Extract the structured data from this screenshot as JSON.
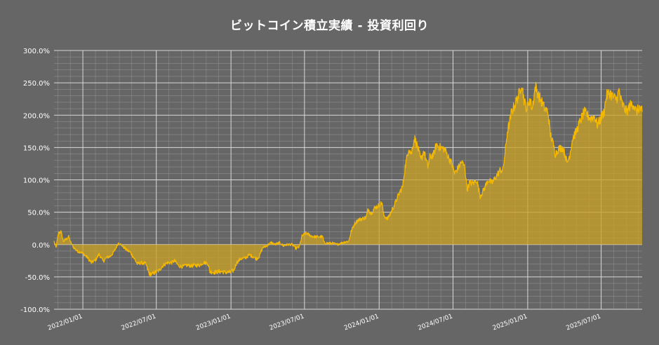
{
  "chart_data": {
    "type": "area",
    "title": "ビットコイン積立実績 ‐ 投資利回り",
    "xlabel": "",
    "ylabel": "",
    "x_range": [
      "2021-10-22",
      "2025-10-10"
    ],
    "ylim": [
      -100,
      300
    ],
    "y_ticks": [
      -100,
      -50,
      0,
      50,
      100,
      150,
      200,
      250,
      300
    ],
    "y_tick_labels": [
      "-100.0%",
      "-50.0%",
      "0.0%",
      "50.0%",
      "100.0%",
      "150.0%",
      "200.0%",
      "250.0%",
      "300.0%"
    ],
    "x_ticks": [
      "2022-01-01",
      "2022-07-01",
      "2023-01-01",
      "2023-07-01",
      "2024-01-01",
      "2024-07-01",
      "2025-01-01",
      "2025-07-01"
    ],
    "x_tick_labels": [
      "2022/01/01",
      "2022/07/01",
      "2023/01/01",
      "2023/07/01",
      "2024/01/01",
      "2024/07/01",
      "2025/01/01",
      "2025/07/01"
    ],
    "grid": true,
    "line_color": "#f5b800",
    "fill_color": "#c9a227",
    "series": [
      {
        "points": [
          [
            "2021-10-22",
            5
          ],
          [
            "2021-10-27",
            -5
          ],
          [
            "2021-11-02",
            18
          ],
          [
            "2021-11-08",
            20
          ],
          [
            "2021-11-14",
            5
          ],
          [
            "2021-11-20",
            8
          ],
          [
            "2021-11-27",
            12
          ],
          [
            "2021-12-03",
            2
          ],
          [
            "2021-12-10",
            -5
          ],
          [
            "2021-12-18",
            -10
          ],
          [
            "2021-12-28",
            -12
          ],
          [
            "2022-01-05",
            -16
          ],
          [
            "2022-01-12",
            -20
          ],
          [
            "2022-01-22",
            -28
          ],
          [
            "2022-02-01",
            -24
          ],
          [
            "2022-02-10",
            -15
          ],
          [
            "2022-02-20",
            -26
          ],
          [
            "2022-03-01",
            -20
          ],
          [
            "2022-03-10",
            -18
          ],
          [
            "2022-03-20",
            -10
          ],
          [
            "2022-03-30",
            3
          ],
          [
            "2022-04-08",
            -2
          ],
          [
            "2022-04-18",
            -8
          ],
          [
            "2022-04-28",
            -12
          ],
          [
            "2022-05-08",
            -22
          ],
          [
            "2022-05-15",
            -30
          ],
          [
            "2022-05-25",
            -28
          ],
          [
            "2022-06-05",
            -30
          ],
          [
            "2022-06-13",
            -45
          ],
          [
            "2022-06-20",
            -46
          ],
          [
            "2022-06-28",
            -43
          ],
          [
            "2022-07-08",
            -40
          ],
          [
            "2022-07-18",
            -32
          ],
          [
            "2022-07-28",
            -28
          ],
          [
            "2022-08-08",
            -28
          ],
          [
            "2022-08-15",
            -25
          ],
          [
            "2022-08-25",
            -33
          ],
          [
            "2022-09-05",
            -34
          ],
          [
            "2022-09-15",
            -32
          ],
          [
            "2022-09-25",
            -33
          ],
          [
            "2022-10-05",
            -32
          ],
          [
            "2022-10-15",
            -32
          ],
          [
            "2022-10-25",
            -28
          ],
          [
            "2022-11-05",
            -29
          ],
          [
            "2022-11-10",
            -42
          ],
          [
            "2022-11-20",
            -43
          ],
          [
            "2022-12-01",
            -42
          ],
          [
            "2022-12-10",
            -42
          ],
          [
            "2022-12-20",
            -43
          ],
          [
            "2022-12-30",
            -43
          ],
          [
            "2023-01-08",
            -40
          ],
          [
            "2023-01-15",
            -28
          ],
          [
            "2023-01-25",
            -22
          ],
          [
            "2023-02-05",
            -21
          ],
          [
            "2023-02-15",
            -16
          ],
          [
            "2023-02-25",
            -19
          ],
          [
            "2023-03-05",
            -22
          ],
          [
            "2023-03-12",
            -18
          ],
          [
            "2023-03-20",
            -5
          ],
          [
            "2023-03-30",
            -2
          ],
          [
            "2023-04-10",
            3
          ],
          [
            "2023-04-20",
            0
          ],
          [
            "2023-05-01",
            3
          ],
          [
            "2023-05-10",
            -2
          ],
          [
            "2023-05-20",
            0
          ],
          [
            "2023-06-01",
            0
          ],
          [
            "2023-06-10",
            -6
          ],
          [
            "2023-06-18",
            -4
          ],
          [
            "2023-06-25",
            13
          ],
          [
            "2023-07-05",
            18
          ],
          [
            "2023-07-15",
            14
          ],
          [
            "2023-07-25",
            12
          ],
          [
            "2023-08-05",
            12
          ],
          [
            "2023-08-15",
            12
          ],
          [
            "2023-08-18",
            3
          ],
          [
            "2023-08-28",
            2
          ],
          [
            "2023-09-08",
            2
          ],
          [
            "2023-09-18",
            0
          ],
          [
            "2023-09-28",
            2
          ],
          [
            "2023-10-08",
            4
          ],
          [
            "2023-10-18",
            5
          ],
          [
            "2023-10-24",
            20
          ],
          [
            "2023-11-01",
            32
          ],
          [
            "2023-11-10",
            38
          ],
          [
            "2023-11-20",
            40
          ],
          [
            "2023-11-30",
            42
          ],
          [
            "2023-12-05",
            55
          ],
          [
            "2023-12-12",
            48
          ],
          [
            "2023-12-20",
            56
          ],
          [
            "2023-12-30",
            60
          ],
          [
            "2024-01-08",
            65
          ],
          [
            "2024-01-12",
            45
          ],
          [
            "2024-01-22",
            40
          ],
          [
            "2024-02-01",
            52
          ],
          [
            "2024-02-10",
            65
          ],
          [
            "2024-02-20",
            80
          ],
          [
            "2024-02-28",
            90
          ],
          [
            "2024-03-05",
            120
          ],
          [
            "2024-03-14",
            150
          ],
          [
            "2024-03-20",
            140
          ],
          [
            "2024-03-28",
            165
          ],
          [
            "2024-04-05",
            150
          ],
          [
            "2024-04-13",
            130
          ],
          [
            "2024-04-20",
            145
          ],
          [
            "2024-04-30",
            120
          ],
          [
            "2024-05-05",
            135
          ],
          [
            "2024-05-15",
            140
          ],
          [
            "2024-05-21",
            155
          ],
          [
            "2024-05-30",
            150
          ],
          [
            "2024-06-10",
            148
          ],
          [
            "2024-06-20",
            135
          ],
          [
            "2024-06-28",
            125
          ],
          [
            "2024-07-05",
            110
          ],
          [
            "2024-07-15",
            120
          ],
          [
            "2024-07-22",
            128
          ],
          [
            "2024-07-30",
            120
          ],
          [
            "2024-08-05",
            85
          ],
          [
            "2024-08-10",
            95
          ],
          [
            "2024-08-20",
            95
          ],
          [
            "2024-08-28",
            100
          ],
          [
            "2024-09-06",
            75
          ],
          [
            "2024-09-15",
            85
          ],
          [
            "2024-09-25",
            100
          ],
          [
            "2024-10-05",
            95
          ],
          [
            "2024-10-15",
            105
          ],
          [
            "2024-10-25",
            115
          ],
          [
            "2024-11-01",
            115
          ],
          [
            "2024-11-06",
            140
          ],
          [
            "2024-11-12",
            175
          ],
          [
            "2024-11-18",
            190
          ],
          [
            "2024-11-22",
            205
          ],
          [
            "2024-11-30",
            215
          ],
          [
            "2024-12-06",
            225
          ],
          [
            "2024-12-12",
            235
          ],
          [
            "2024-12-17",
            250
          ],
          [
            "2024-12-24",
            220
          ],
          [
            "2024-12-30",
            210
          ],
          [
            "2025-01-06",
            225
          ],
          [
            "2025-01-12",
            210
          ],
          [
            "2025-01-20",
            245
          ],
          [
            "2025-01-28",
            230
          ],
          [
            "2025-02-05",
            220
          ],
          [
            "2025-02-12",
            210
          ],
          [
            "2025-02-20",
            205
          ],
          [
            "2025-02-26",
            170
          ],
          [
            "2025-03-05",
            155
          ],
          [
            "2025-03-10",
            140
          ],
          [
            "2025-03-18",
            148
          ],
          [
            "2025-03-28",
            150
          ],
          [
            "2025-04-05",
            135
          ],
          [
            "2025-04-08",
            125
          ],
          [
            "2025-04-15",
            140
          ],
          [
            "2025-04-22",
            165
          ],
          [
            "2025-05-01",
            175
          ],
          [
            "2025-05-10",
            190
          ],
          [
            "2025-05-20",
            205
          ],
          [
            "2025-05-28",
            200
          ],
          [
            "2025-06-05",
            195
          ],
          [
            "2025-06-15",
            198
          ],
          [
            "2025-06-22",
            185
          ],
          [
            "2025-06-30",
            195
          ],
          [
            "2025-07-08",
            205
          ],
          [
            "2025-07-14",
            230
          ],
          [
            "2025-07-22",
            235
          ],
          [
            "2025-07-30",
            228
          ],
          [
            "2025-08-08",
            225
          ],
          [
            "2025-08-14",
            238
          ],
          [
            "2025-08-20",
            220
          ],
          [
            "2025-08-28",
            210
          ],
          [
            "2025-09-02",
            205
          ],
          [
            "2025-09-10",
            215
          ],
          [
            "2025-09-18",
            218
          ],
          [
            "2025-09-26",
            205
          ],
          [
            "2025-10-03",
            212
          ],
          [
            "2025-10-10",
            205
          ]
        ]
      }
    ]
  }
}
